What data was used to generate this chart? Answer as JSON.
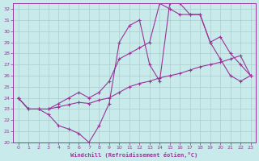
{
  "xlabel": "Windchill (Refroidissement éolien,°C)",
  "bg_color": "#c8eaea",
  "grid_color": "#aacccc",
  "line_color": "#993399",
  "xlim": [
    -0.5,
    23.5
  ],
  "ylim": [
    20,
    32.5
  ],
  "xtick_labels": [
    "0",
    "1",
    "2",
    "3",
    "4",
    "5",
    "6",
    "7",
    "8",
    "9",
    "10",
    "11",
    "12",
    "13",
    "14",
    "15",
    "16",
    "17",
    "18",
    "19",
    "20",
    "21",
    "22",
    "23"
  ],
  "xticks": [
    0,
    1,
    2,
    3,
    4,
    5,
    6,
    7,
    8,
    9,
    10,
    11,
    12,
    13,
    14,
    15,
    16,
    17,
    18,
    19,
    20,
    21,
    22,
    23
  ],
  "yticks": [
    20,
    21,
    22,
    23,
    24,
    25,
    26,
    27,
    28,
    29,
    30,
    31,
    32
  ],
  "series": [
    {
      "x": [
        0,
        1,
        2,
        3,
        4,
        5,
        6,
        7,
        8,
        9,
        10,
        11,
        12,
        13,
        14,
        15,
        16,
        17,
        18,
        19,
        20,
        21,
        22,
        23
      ],
      "y": [
        24,
        23,
        23,
        22.5,
        21.5,
        21.2,
        20.8,
        20.0,
        21.5,
        23.5,
        29.0,
        30.5,
        31.0,
        27.0,
        25.5,
        32.5,
        32.5,
        31.5,
        31.5,
        29.0,
        27.5,
        26.0,
        25.5,
        26.0
      ]
    },
    {
      "x": [
        0,
        1,
        2,
        3,
        4,
        5,
        6,
        7,
        8,
        9,
        10,
        11,
        12,
        13,
        14,
        15,
        16,
        17,
        18,
        19,
        20,
        21,
        22,
        23
      ],
      "y": [
        24,
        23,
        23.0,
        23.0,
        23.2,
        23.4,
        23.6,
        23.5,
        23.8,
        24.0,
        24.5,
        25.0,
        25.3,
        25.5,
        25.8,
        26.0,
        26.2,
        26.5,
        26.8,
        27.0,
        27.2,
        27.5,
        27.8,
        26.0
      ]
    },
    {
      "x": [
        0,
        1,
        2,
        3,
        4,
        5,
        6,
        7,
        8,
        9,
        10,
        11,
        12,
        13,
        14,
        15,
        16,
        17,
        18,
        19,
        20,
        21,
        22,
        23
      ],
      "y": [
        24,
        23,
        23,
        23,
        23.5,
        24.0,
        24.5,
        24.0,
        24.5,
        25.5,
        27.5,
        28.0,
        28.5,
        29.0,
        32.5,
        32.0,
        31.5,
        31.5,
        31.5,
        29.0,
        29.5,
        28.0,
        27.0,
        26.0
      ]
    }
  ]
}
